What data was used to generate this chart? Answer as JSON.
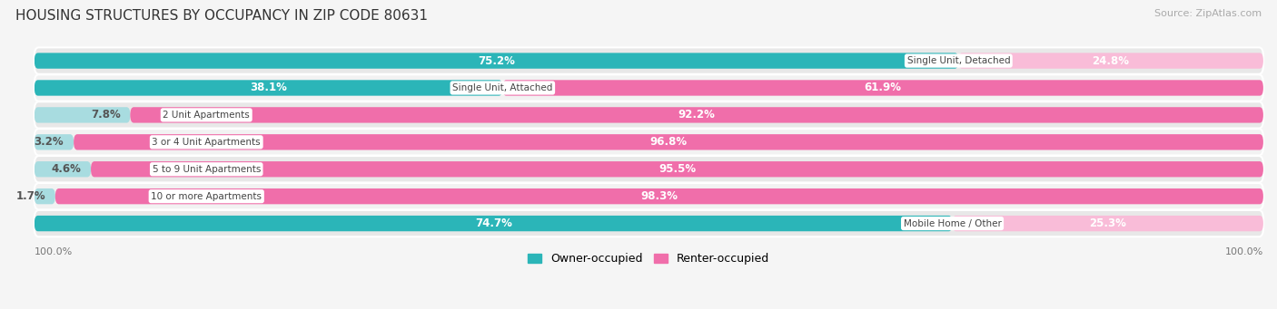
{
  "title": "HOUSING STRUCTURES BY OCCUPANCY IN ZIP CODE 80631",
  "source": "Source: ZipAtlas.com",
  "categories": [
    "Single Unit, Detached",
    "Single Unit, Attached",
    "2 Unit Apartments",
    "3 or 4 Unit Apartments",
    "5 to 9 Unit Apartments",
    "10 or more Apartments",
    "Mobile Home / Other"
  ],
  "owner_pct": [
    75.2,
    38.1,
    7.8,
    3.2,
    4.6,
    1.7,
    74.7
  ],
  "renter_pct": [
    24.8,
    61.9,
    92.2,
    96.8,
    95.5,
    98.3,
    25.3
  ],
  "owner_color_strong": "#2bb5b8",
  "owner_color_light": "#a8dce0",
  "renter_color_strong": "#f06eaa",
  "renter_color_light": "#f9bcd8",
  "row_bg": "#e8e8e8",
  "row_bg_alt": "#f2f2f2",
  "bg_color": "#f5f5f5",
  "title_fontsize": 11,
  "source_fontsize": 8,
  "bar_label_fontsize": 8.5,
  "legend_fontsize": 9,
  "axis_label_fontsize": 8,
  "owner_strong_threshold": 30,
  "renter_strong_threshold": 30
}
